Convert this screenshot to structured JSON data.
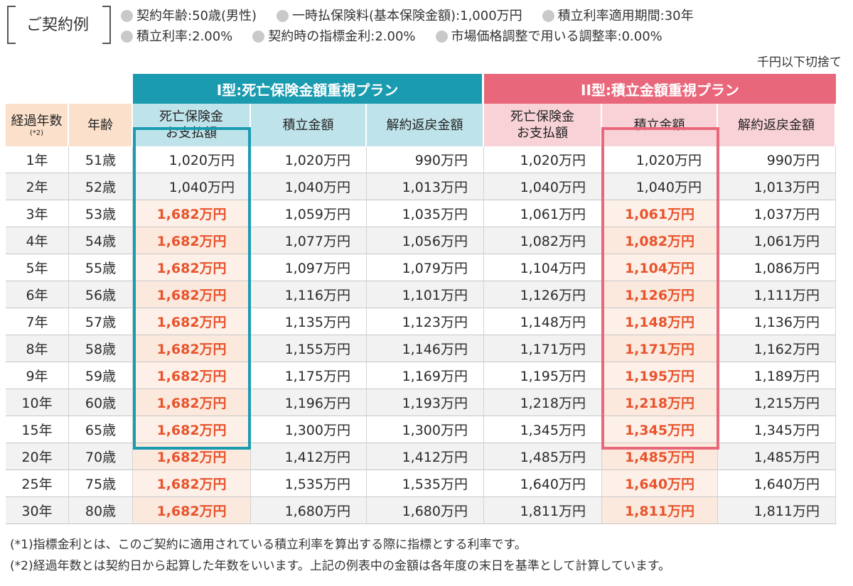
{
  "header": {
    "example_label": "ご契約例",
    "conditions_row1": [
      "契約年齢:50歳(男性)",
      "一時払保険料(基本保険金額):1,000万円",
      "積立利率適用期間:30年"
    ],
    "conditions_row2": [
      "積立利率:2.00%",
      "契約時の指標金利:2.00%",
      "市場価格調整で用いる調整率:0.00%"
    ],
    "unit_note": "千円以下切捨て"
  },
  "table": {
    "plan1_title": "I型:死亡保険金額重視プラン",
    "plan2_title": "II型:積立金額重視プラン",
    "columns": {
      "years": "経過年数",
      "years_note": "(*2)",
      "age": "年齢",
      "death_benefit_line1": "死亡保険金",
      "death_benefit_line2": "お支払額",
      "accumulation": "積立金額",
      "surrender": "解約返戻金額"
    },
    "rows": [
      [
        "1年",
        "51歳",
        "1,020万円",
        "1,020万円",
        "990万円",
        "1,020万円",
        "1,020万円",
        "990万円"
      ],
      [
        "2年",
        "52歳",
        "1,040万円",
        "1,040万円",
        "1,013万円",
        "1,040万円",
        "1,040万円",
        "1,013万円"
      ],
      [
        "3年",
        "53歳",
        "1,682万円",
        "1,059万円",
        "1,035万円",
        "1,061万円",
        "1,061万円",
        "1,037万円"
      ],
      [
        "4年",
        "54歳",
        "1,682万円",
        "1,077万円",
        "1,056万円",
        "1,082万円",
        "1,082万円",
        "1,061万円"
      ],
      [
        "5年",
        "55歳",
        "1,682万円",
        "1,097万円",
        "1,079万円",
        "1,104万円",
        "1,104万円",
        "1,086万円"
      ],
      [
        "6年",
        "56歳",
        "1,682万円",
        "1,116万円",
        "1,101万円",
        "1,126万円",
        "1,126万円",
        "1,111万円"
      ],
      [
        "7年",
        "57歳",
        "1,682万円",
        "1,135万円",
        "1,123万円",
        "1,148万円",
        "1,148万円",
        "1,136万円"
      ],
      [
        "8年",
        "58歳",
        "1,682万円",
        "1,155万円",
        "1,146万円",
        "1,171万円",
        "1,171万円",
        "1,162万円"
      ],
      [
        "9年",
        "59歳",
        "1,682万円",
        "1,175万円",
        "1,169万円",
        "1,195万円",
        "1,195万円",
        "1,189万円"
      ],
      [
        "10年",
        "60歳",
        "1,682万円",
        "1,196万円",
        "1,193万円",
        "1,218万円",
        "1,218万円",
        "1,215万円"
      ],
      [
        "15年",
        "65歳",
        "1,682万円",
        "1,300万円",
        "1,300万円",
        "1,345万円",
        "1,345万円",
        "1,345万円"
      ],
      [
        "20年",
        "70歳",
        "1,682万円",
        "1,412万円",
        "1,412万円",
        "1,485万円",
        "1,485万円",
        "1,485万円"
      ],
      [
        "25年",
        "75歳",
        "1,682万円",
        "1,535万円",
        "1,535万円",
        "1,640万円",
        "1,640万円",
        "1,640万円"
      ],
      [
        "30年",
        "80歳",
        "1,682万円",
        "1,680万円",
        "1,680万円",
        "1,811万円",
        "1,811万円",
        "1,811万円"
      ]
    ]
  },
  "notes": [
    "(*1)指標金利とは、このご契約に適用されている積立利率を算出する際に指標とする利率です。",
    "(*2)経過年数とは契約日から起算した年数をいいます。上記の例表中の金額は各年度の末日を基準として計算しています。"
  ],
  "colors": {
    "plan1": "#1a9bb0",
    "plan2": "#e9677b",
    "highlight_text": "#e8532c"
  }
}
